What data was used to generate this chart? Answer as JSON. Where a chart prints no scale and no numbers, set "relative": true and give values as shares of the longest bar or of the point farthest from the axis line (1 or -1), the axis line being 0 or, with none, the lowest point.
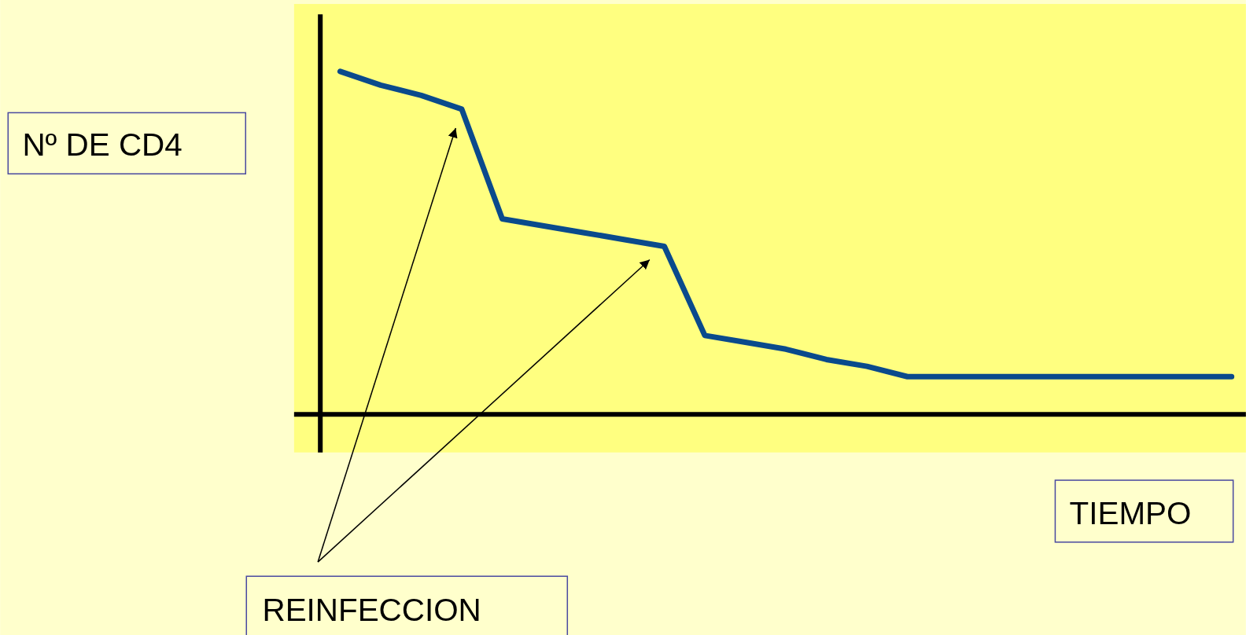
{
  "chart_data": {
    "type": "line",
    "relative": true,
    "tick_labels": false,
    "xlabel": "TIEMPO",
    "ylabel": "Nº DE CD4",
    "annotations": [
      "REINFECCION"
    ],
    "categories": [
      null,
      null,
      null,
      null,
      null,
      null,
      null,
      null,
      null,
      null,
      null,
      null,
      null,
      null,
      null,
      null,
      null,
      null,
      null,
      null,
      null,
      null,
      null
    ],
    "series": [
      {
        "color": "#0a4a8c",
        "values": [
          1,
          0.96,
          0.93,
          0.89,
          0.57,
          0.55,
          0.53,
          0.51,
          0.49,
          0.23,
          0.21,
          0.19,
          0.16,
          0.14,
          0.11,
          0.11,
          0.11,
          0.11,
          0.11,
          0.11,
          0.11,
          0.11,
          0.11
        ]
      }
    ]
  }
}
